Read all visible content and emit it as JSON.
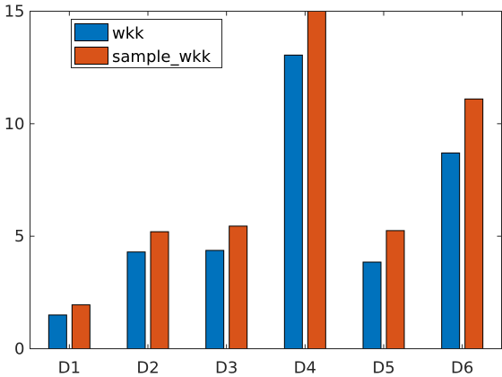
{
  "chart_data": {
    "type": "bar",
    "categories": [
      "D1",
      "D2",
      "D3",
      "D4",
      "D5",
      "D6"
    ],
    "series": [
      {
        "name": "wkk",
        "color": "#0072BD",
        "values": [
          1.5,
          4.3,
          4.37,
          13.05,
          3.85,
          8.7
        ]
      },
      {
        "name": "sample_wkk",
        "color": "#D95319",
        "values": [
          1.95,
          5.2,
          5.45,
          15.0,
          5.25,
          11.1
        ]
      }
    ],
    "ylim": [
      0,
      15
    ],
    "yticks": [
      0,
      5,
      10,
      15
    ],
    "legend_position": "top-left",
    "grid": false,
    "box": true
  }
}
